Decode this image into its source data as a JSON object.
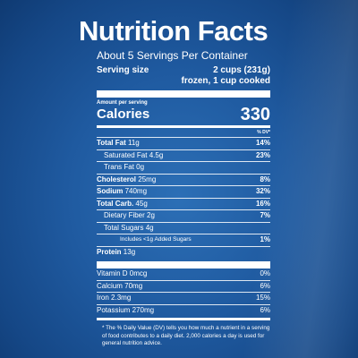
{
  "title": "Nutrition Facts",
  "servings_per_container": "About 5 Servings Per Container",
  "serving_size": {
    "label": "Serving size",
    "value": "2 cups (231g)",
    "note": "frozen, 1 cup cooked"
  },
  "amount_per_serving": "Amount per serving",
  "calories": {
    "label": "Calories",
    "value": "330"
  },
  "dv_header": "% DV*",
  "nutrients": [
    {
      "label": "Total Fat",
      "amount": "11g",
      "dv": "14%"
    },
    {
      "label": "Saturated Fat",
      "amount": "4.5g",
      "dv": "23%"
    },
    {
      "label": "Trans Fat",
      "amount": "0g",
      "dv": ""
    },
    {
      "label": "Cholesterol",
      "amount": "25mg",
      "dv": "8%"
    },
    {
      "label": "Sodium",
      "amount": "740mg",
      "dv": "32%"
    },
    {
      "label": "Total Carb.",
      "amount": "45g",
      "dv": "16%"
    },
    {
      "label": "Dietary Fiber",
      "amount": "2g",
      "dv": "7%"
    },
    {
      "label": "Total Sugars",
      "amount": "4g",
      "dv": ""
    },
    {
      "label": "Includes <1g Added Sugars",
      "amount": "",
      "dv": "1%"
    },
    {
      "label": "Protein",
      "amount": "13g",
      "dv": ""
    }
  ],
  "vitamins": [
    {
      "label": "Vitamin D",
      "amount": "0mcg",
      "dv": "0%"
    },
    {
      "label": "Calcium",
      "amount": "70mg",
      "dv": "6%"
    },
    {
      "label": "Iron",
      "amount": "2.3mg",
      "dv": "15%"
    },
    {
      "label": "Potassium",
      "amount": "270mg",
      "dv": "6%"
    }
  ],
  "footnote": "* The % Daily Value (DV) tells you how much a nutrient in a serving of food contributes to a daily diet. 2,000 calories a day is used for general nutrition advice."
}
